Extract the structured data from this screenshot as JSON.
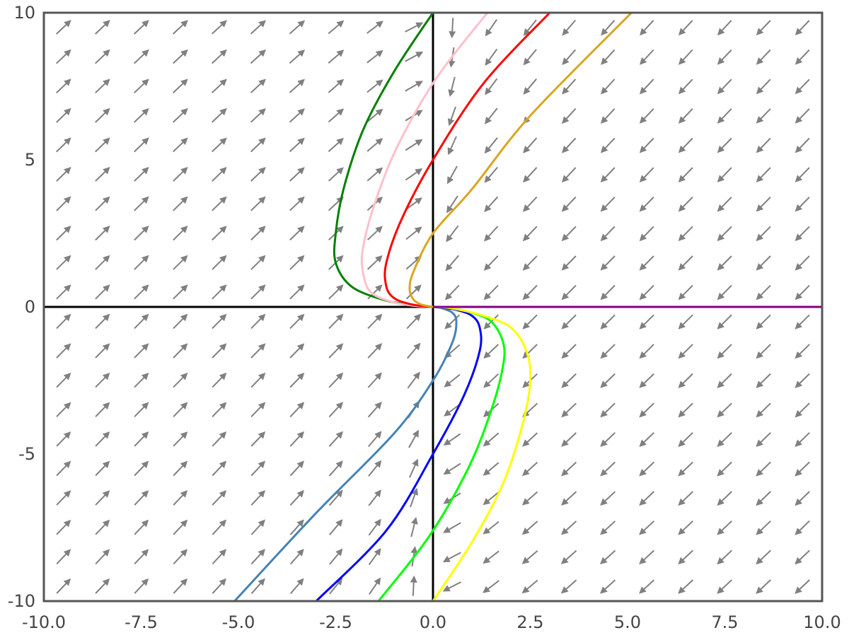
{
  "chart_data": {
    "type": "line",
    "title": "",
    "xlabel": "",
    "ylabel": "",
    "xlim": [
      -10,
      10
    ],
    "ylim": [
      -10,
      10
    ],
    "grid": false,
    "legend": "none",
    "x_ticks": [
      "-10.0",
      "-7.5",
      "-5.0",
      "-2.5",
      "0.0",
      "2.5",
      "5.0",
      "7.5",
      "10.0"
    ],
    "x_tick_values": [
      -10,
      -7.5,
      -5,
      -2.5,
      0,
      2.5,
      5,
      7.5,
      10
    ],
    "y_ticks": [
      "-10",
      "-5",
      "0",
      "5",
      "10"
    ],
    "y_tick_values": [
      -10,
      -5,
      0,
      5,
      10
    ],
    "vector_field": {
      "x_range": [
        -9.5,
        9.5
      ],
      "y_range": [
        -9.5,
        9.5
      ],
      "grid_n": 20,
      "color": "#808080"
    },
    "axes_lines_color": "#000000",
    "series": [
      {
        "color": "#008000",
        "x": [
          0.0,
          -1.0,
          -1.8,
          -2.3,
          -2.5,
          -2.5,
          -2.1,
          -1.3,
          -0.5,
          0.0
        ],
        "y": [
          10.0,
          8.0,
          6.0,
          4.0,
          2.5,
          1.5,
          0.7,
          0.25,
          0.05,
          0.0
        ]
      },
      {
        "color": "#ffc0cb",
        "x": [
          1.4,
          0.1,
          -0.9,
          -1.5,
          -1.8,
          -1.8,
          -1.6,
          -1.0,
          -0.4,
          0.0
        ],
        "y": [
          10.0,
          7.8,
          5.5,
          3.5,
          2.0,
          1.2,
          0.5,
          0.15,
          0.03,
          0.0
        ]
      },
      {
        "color": "#ff0000",
        "x": [
          3.0,
          1.3,
          0.0,
          -0.8,
          -1.2,
          -1.2,
          -1.0,
          -0.6,
          -0.2,
          0.0
        ],
        "y": [
          10.0,
          7.6,
          5.0,
          3.0,
          1.5,
          0.7,
          0.3,
          0.1,
          0.02,
          0.0
        ]
      },
      {
        "color": "#daa520",
        "x": [
          5.1,
          2.5,
          1.0,
          0.0,
          -0.5,
          -0.6,
          -0.5,
          -0.3,
          0.0
        ],
        "y": [
          10.0,
          6.5,
          4.0,
          2.5,
          1.2,
          0.6,
          0.25,
          0.08,
          0.0
        ]
      },
      {
        "color": "#4682b4",
        "x": [
          -5.1,
          -3.0,
          -1.0,
          0.0,
          0.5,
          0.6,
          0.5,
          0.25,
          0.0
        ],
        "y": [
          -10.0,
          -7.0,
          -4.3,
          -2.5,
          -1.2,
          -0.5,
          -0.2,
          -0.05,
          0.0
        ]
      },
      {
        "color": "#0000ff",
        "x": [
          -3.0,
          -1.2,
          0.0,
          0.8,
          1.2,
          1.2,
          1.0,
          0.6,
          0.2,
          0.0
        ],
        "y": [
          -10.0,
          -7.6,
          -5.0,
          -3.0,
          -1.5,
          -0.7,
          -0.3,
          -0.1,
          -0.02,
          0.0
        ]
      },
      {
        "color": "#00ff00",
        "x": [
          -1.4,
          -0.1,
          0.9,
          1.5,
          1.8,
          1.8,
          1.5,
          1.0,
          0.4,
          0.0
        ],
        "y": [
          -10.0,
          -7.8,
          -5.5,
          -3.5,
          -2.0,
          -1.2,
          -0.5,
          -0.2,
          -0.03,
          0.0
        ]
      },
      {
        "color": "#ffff00",
        "x": [
          0.0,
          1.0,
          1.8,
          2.3,
          2.5,
          2.4,
          2.0,
          1.3,
          0.5,
          0.0
        ],
        "y": [
          -10.0,
          -8.0,
          -6.0,
          -4.0,
          -2.5,
          -1.5,
          -0.7,
          -0.3,
          -0.05,
          0.0
        ]
      },
      {
        "color": "#800080",
        "x": [
          0.0,
          10.0
        ],
        "y": [
          0.0,
          0.0
        ]
      }
    ]
  }
}
